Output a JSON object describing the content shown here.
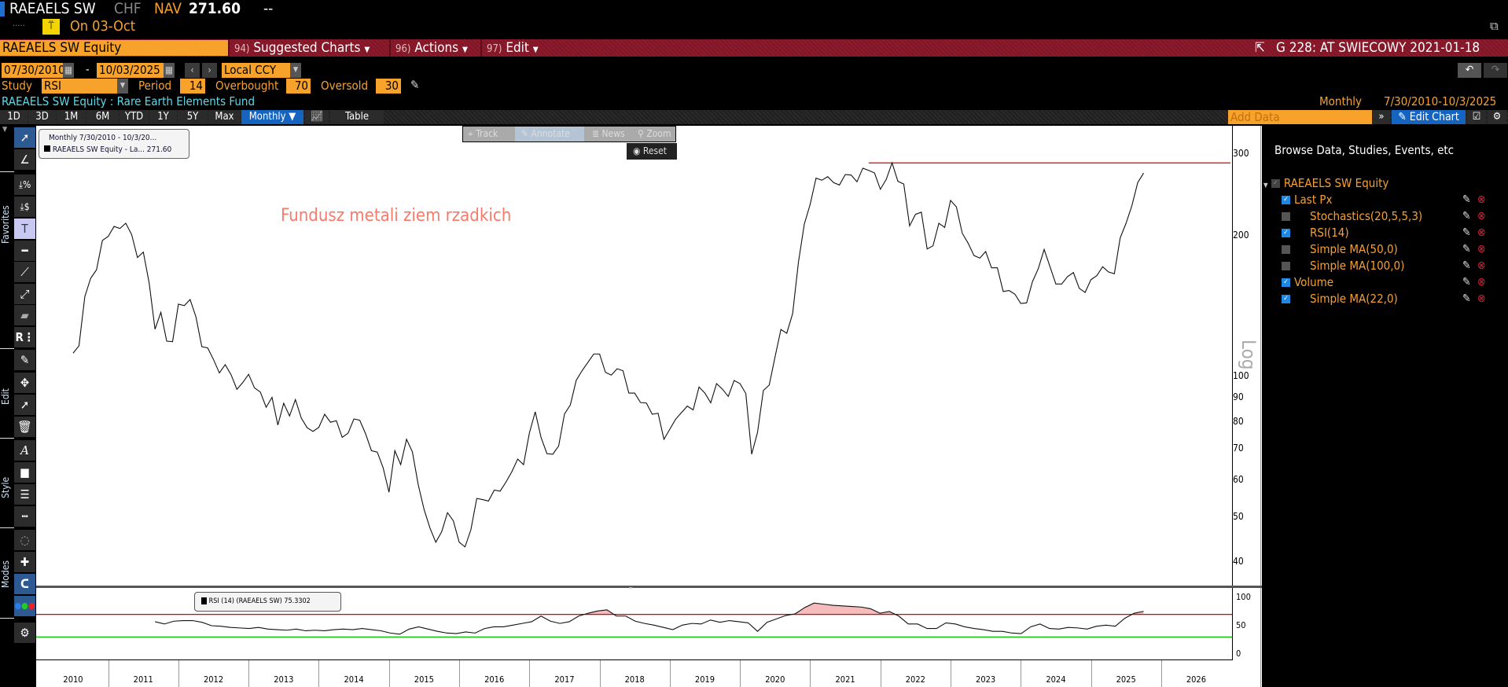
{
  "header": {
    "ticker": "RAEAELS SW",
    "currency": "CHF",
    "nav_label": "NAV",
    "nav_value": "271.60",
    "change": "--",
    "dots": ".....",
    "status_icon": "gauge-icon",
    "date_label": "On 03-Oct"
  },
  "menubar": {
    "security": "RAEAELS SW Equity",
    "suggested_num": "94)",
    "suggested": "Suggested Charts",
    "actions_num": "96)",
    "actions": "Actions",
    "edit_num": "97)",
    "edit": "Edit",
    "chart_title": "G 228: AT SWIECOWY 2021-01-18"
  },
  "controls": {
    "start_date": "07/30/2010",
    "date_sep": "-",
    "end_date": "10/03/2025",
    "currency_mode": "Local CCY",
    "study_label": "Study",
    "study": "RSI",
    "period_label": "Period",
    "period": "14",
    "overbought_label": "Overbought",
    "overbought": "70",
    "oversold_label": "Oversold",
    "oversold": "30"
  },
  "description": {
    "text": "RAEAELS SW Equity : Rare Earth Elements Fund",
    "frequency": "Monthly",
    "range": "7/30/2010-10/3/2025"
  },
  "toolbar": {
    "periods": [
      "1D",
      "3D",
      "1M",
      "6M",
      "YTD",
      "1Y",
      "5Y",
      "Max"
    ],
    "frequency": "Monthly ▼",
    "table": "Table",
    "add_data_placeholder": "Add Data",
    "edit_chart": "Edit Chart"
  },
  "chart_tools": {
    "track": "Track",
    "annotate": "Annotate",
    "news": "News",
    "zoom": "Zoom",
    "reset": "Reset"
  },
  "left_toolbar": {
    "favorites": "Favorites",
    "edit": "Edit",
    "style": "Style",
    "modes": "Modes"
  },
  "legend": {
    "line1": "Monthly 7/30/2010 - 10/3/20...",
    "line2": "RAEAELS SW Equity - La...",
    "value": "271.60"
  },
  "annotation": {
    "text": "Fundusz metali ziem rzadkich",
    "color": "#f87a6a"
  },
  "rsi_legend": {
    "text": "RSI (14) (RAEAELS SW)",
    "value": "75.3302"
  },
  "panel": {
    "title": "Browse Data, Studies, Events, etc",
    "security": "RAEAELS SW Equity",
    "items": [
      {
        "label": "Last Px",
        "checked": true,
        "indent": false
      },
      {
        "label": "Stochastics(20,5,5,3)",
        "checked": false,
        "indent": true
      },
      {
        "label": "RSI(14)",
        "checked": true,
        "indent": true
      },
      {
        "label": "Simple MA(50,0)",
        "checked": false,
        "indent": true
      },
      {
        "label": "Simple MA(100,0)",
        "checked": false,
        "indent": true
      },
      {
        "label": "Volume",
        "checked": true,
        "indent": false
      },
      {
        "label": "Simple MA(22,0)",
        "checked": true,
        "indent": true
      }
    ]
  },
  "colors": {
    "accent_orange": "#f7a32b",
    "menu_red": "#8e1b2c",
    "active_blue": "#1565c0",
    "overbought_line": "#e00000",
    "oversold_line": "#00c000",
    "rsi_fill": "#f6bcbc",
    "high_line": "#d80000"
  },
  "chart_data": [
    {
      "type": "line",
      "series": [
        {
          "name": "RAEAELS SW Equity - Last Px",
          "start": "2010-07",
          "end": "2025-10",
          "frequency": "monthly",
          "values": [
            111.8,
            115.9,
            147.7,
            161.7,
            168.6,
            194.8,
            198.8,
            208.8,
            206.7,
            212.1,
            200.7,
            179.1,
            184.0,
            158.0,
            125.8,
            136.7,
            118.6,
            118.3,
            142.3,
            141.3,
            145.6,
            133.6,
            115.4,
            114.7,
            108.3,
            101.4,
            105.6,
            100.5,
            93.5,
            96.7,
            100.7,
            94.2,
            92.3,
            85.6,
            89.9,
            78.4,
            87.3,
            82.0,
            88.9,
            81.2,
            77.4,
            76.0,
            77.5,
            82.7,
            79.5,
            80.1,
            73.8,
            75.3,
            80.8,
            80.3,
            75.1,
            69.1,
            68.6,
            63.5,
            56.3,
            69.1,
            64.5,
            73.1,
            68.7,
            58.4,
            51.7,
            47.2,
            44.0,
            46.3,
            50.9,
            48.9,
            44.0,
            43.0,
            46.8,
            54.6,
            54.3,
            53.9,
            56.9,
            56.6,
            59.2,
            62.3,
            66.3,
            64.5,
            75.4,
            83.7,
            73.7,
            68.1,
            67.9,
            70.7,
            82.8,
            86.6,
            97.7,
            102.5,
            106.8,
            111.3,
            111.3,
            101.7,
            100.3,
            103.5,
            102.5,
            91.8,
            91.8,
            87.6,
            87.4,
            82.7,
            83.1,
            73.1,
            76.8,
            80.7,
            83.4,
            86.1,
            84.5,
            94.6,
            91.8,
            87.5,
            96.2,
            93.6,
            90.3,
            97.7,
            96.2,
            91.6,
            67.9,
            75.6,
            93.0,
            95.5,
            109.8,
            125.6,
            123.3,
            135.8,
            175.2,
            211.3,
            232.8,
            264.9,
            262.2,
            266.9,
            259.2,
            256.1,
            269.7,
            269.0,
            260.2,
            278.3,
            275.3,
            271.8,
            250.8,
            263.2,
            285.6,
            260.8,
            257.4,
            209.4,
            221.6,
            224.0,
            186.8,
            189.8,
            212.1,
            207.8,
            237.4,
            229.9,
            201.9,
            192.3,
            180.9,
            178.6,
            184.5,
            170.3,
            170.3,
            151.5,
            152.2,
            149.5,
            142.8,
            143.2,
            159.0,
            169.6,
            186.4,
            171.2,
            157.2,
            157.2,
            163.0,
            166.3,
            153.9,
            150.8,
            160.6,
            163.8,
            171.2,
            166.8,
            165.3,
            197.3,
            212.1,
            231.3,
            259.2,
            271.6
          ]
        }
      ],
      "high_line": {
        "value": 285.6,
        "from": "2021-11"
      },
      "y_scale": "log",
      "y_axis_label": "Log",
      "ylim": [
        35.5,
        343
      ],
      "y_ticks": [
        "300",
        "200",
        "100",
        "90",
        "80",
        "70",
        "60",
        "50",
        "40"
      ],
      "x_ticks": [
        "2010",
        "2011",
        "2012",
        "2013",
        "2014",
        "2015",
        "2016",
        "2017",
        "2018",
        "2019",
        "2020",
        "2021",
        "2022",
        "2023",
        "2024",
        "2025",
        "2026"
      ],
      "xlim": [
        "2010-01",
        "2026-12"
      ],
      "grid": false
    },
    {
      "type": "line",
      "title": "RSI (14) (RAEAELS SW)",
      "series": [
        {
          "name": "RSI (14) (RAEAELS SW)",
          "start": "2011-09",
          "end": "2025-10",
          "frequency": "evenly spaced",
          "values": [
            57,
            53,
            58,
            59,
            59,
            56,
            50,
            49,
            47,
            46,
            45,
            47,
            44,
            43,
            42,
            44,
            41,
            42,
            41,
            43,
            44,
            43,
            45,
            43,
            41,
            37,
            35,
            44,
            48,
            44,
            40,
            37,
            36,
            39,
            37,
            45,
            48,
            48,
            51,
            54,
            57,
            67,
            58,
            54,
            57,
            67,
            72,
            76,
            78,
            67,
            67,
            58,
            54,
            51,
            47,
            43,
            51,
            54,
            53,
            60,
            56,
            59,
            57,
            55,
            40,
            56,
            62,
            68,
            71,
            82,
            90,
            88,
            86,
            85,
            84,
            83,
            80,
            72,
            75,
            67,
            53,
            53,
            45,
            45,
            55,
            53,
            48,
            45,
            43,
            40,
            40,
            37,
            36,
            48,
            53,
            45,
            44,
            47,
            46,
            44,
            49,
            51,
            49,
            63,
            72,
            75.33
          ]
        }
      ],
      "overbought": 70,
      "oversold": 30,
      "ylim": [
        0,
        100
      ],
      "y_ticks": [
        "100",
        "50",
        "0"
      ],
      "grid": false
    }
  ]
}
